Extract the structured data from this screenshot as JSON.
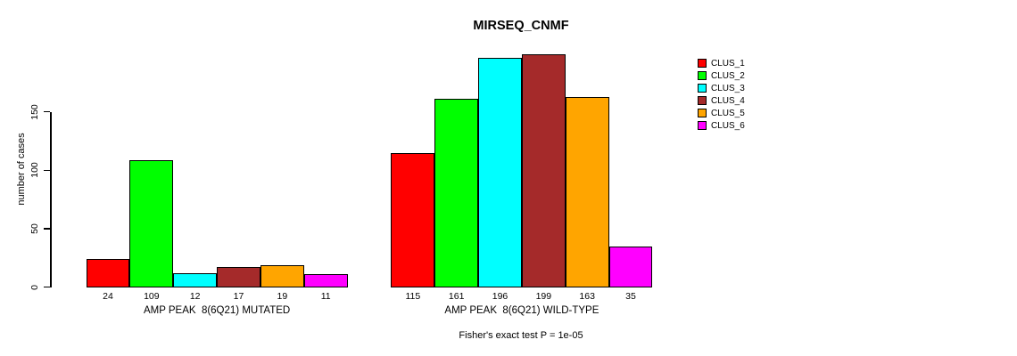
{
  "chart_data": {
    "type": "bar",
    "title": "MIRSEQ_CNMF",
    "ylabel": "number of cases",
    "ylim": [
      0,
      199
    ],
    "yticks": [
      0,
      50,
      100,
      150
    ],
    "grid": false,
    "legend_position": "right",
    "bar_border_color": "#000000",
    "series_colors": [
      "#FF0000",
      "#00FF00",
      "#00FFFF",
      "#A52A2A",
      "#FFA500",
      "#FF00FF"
    ],
    "legend": [
      {
        "label": "CLUS_1",
        "color": "#FF0000"
      },
      {
        "label": "CLUS_2",
        "color": "#00FF00"
      },
      {
        "label": "CLUS_3",
        "color": "#00FFFF"
      },
      {
        "label": "CLUS_4",
        "color": "#A52A2A"
      },
      {
        "label": "CLUS_5",
        "color": "#FFA500"
      },
      {
        "label": "CLUS_6",
        "color": "#FF00FF"
      }
    ],
    "groups": [
      {
        "label": "AMP PEAK  8(6Q21) MUTATED",
        "values": [
          24,
          109,
          12,
          17,
          19,
          11
        ]
      },
      {
        "label": "AMP PEAK  8(6Q21) WILD-TYPE",
        "values": [
          115,
          161,
          196,
          199,
          163,
          35
        ]
      }
    ],
    "annotation": "Fisher's exact test P = 1e-05"
  }
}
